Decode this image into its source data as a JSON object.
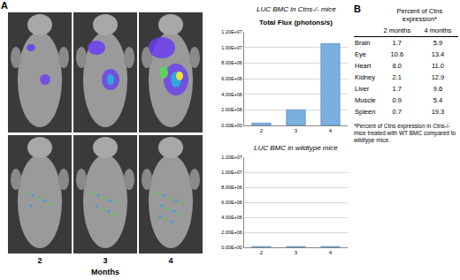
{
  "panels": {
    "left": "A",
    "right": "B"
  },
  "images": {
    "time_labels": [
      "2",
      "3",
      "4"
    ],
    "axis_label": "Months"
  },
  "chart_data": [
    {
      "type": "bar",
      "title": "LUC BMC in Ctns-/- mice",
      "subtitle": "Total Flux (photons/s)",
      "categories": [
        "2",
        "3",
        "4"
      ],
      "values": [
        300000,
        2000000,
        10500000
      ],
      "color": "#79b0e0",
      "ylim": [
        0,
        12000000
      ],
      "yticks": [
        {
          "value": 0,
          "label": "0.00E+00"
        },
        {
          "value": 2000000,
          "label": "2.00E+06"
        },
        {
          "value": 4000000,
          "label": "4.00E+06"
        },
        {
          "value": 6000000,
          "label": "6.00E+06"
        },
        {
          "value": 8000000,
          "label": "8.00E+06"
        },
        {
          "value": 10000000,
          "label": "1.00E+07"
        },
        {
          "value": 12000000,
          "label": "1.20E+07"
        }
      ],
      "grid": true
    },
    {
      "type": "bar",
      "title": "LUC BMC in wildtype mice",
      "categories": [
        "2",
        "3",
        "4"
      ],
      "values": [
        100000,
        100000,
        100000
      ],
      "color": "#79b0e0",
      "ylim": [
        0,
        12000000
      ],
      "yticks": [
        {
          "value": 0,
          "label": "0.00E+00"
        },
        {
          "value": 2000000,
          "label": "2.00E+06"
        },
        {
          "value": 4000000,
          "label": "4.00E+06"
        },
        {
          "value": 6000000,
          "label": "6.00E+06"
        },
        {
          "value": 8000000,
          "label": "8.00E+06"
        },
        {
          "value": 10000000,
          "label": "1.00E+07"
        },
        {
          "value": 12000000,
          "label": "1.20E+07"
        }
      ],
      "grid": true
    }
  ],
  "table": {
    "header": {
      "title": "Percent of Ctns expression*",
      "columns": [
        "2 months",
        "4 months"
      ]
    },
    "rows": [
      [
        "Brain",
        "1.7",
        "5.9"
      ],
      [
        "Eye",
        "10.6",
        "13.4"
      ],
      [
        "Heart",
        "8.0",
        "11.0"
      ],
      [
        "Kidney",
        "2.1",
        "12.9"
      ],
      [
        "Liver",
        "1.7",
        "9.6"
      ],
      [
        "Muscle",
        "0.9",
        "5.4"
      ],
      [
        "Spleen",
        "0.7",
        "19.3"
      ]
    ],
    "footnote": "*Percent of Ctns expression in Ctns-/- mice treated with WT BMC compared to wildtype mice."
  }
}
